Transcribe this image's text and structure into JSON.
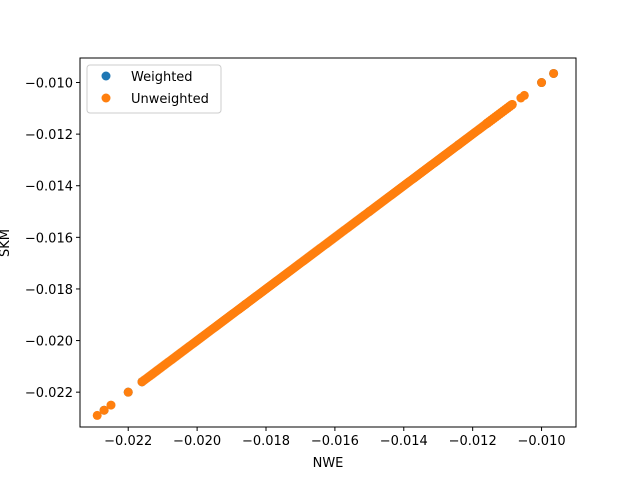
{
  "chart_data": {
    "type": "scatter",
    "xlabel": "NWE",
    "ylabel": "SKM",
    "xlim": [
      -0.0234,
      -0.009
    ],
    "ylim": [
      -0.02335,
      -0.00905
    ],
    "xticks": [
      -0.022,
      -0.02,
      -0.018,
      -0.016,
      -0.014,
      -0.012,
      -0.01
    ],
    "yticks": [
      -0.022,
      -0.02,
      -0.018,
      -0.016,
      -0.014,
      -0.012,
      -0.01
    ],
    "xtick_labels": [
      "−0.022",
      "−0.020",
      "−0.018",
      "−0.016",
      "−0.014",
      "−0.012",
      "−0.010"
    ],
    "ytick_labels": [
      "−0.022",
      "−0.020",
      "−0.018",
      "−0.016",
      "−0.014",
      "−0.012",
      "−0.010"
    ],
    "grid": false,
    "legend": "top-left",
    "series": [
      {
        "name": "Weighted",
        "color": "#1f77b4",
        "points": [
          [
            -0.0227,
            -0.0227
          ],
          [
            -0.022,
            -0.022
          ],
          [
            -0.01,
            -0.01
          ],
          [
            -0.00965,
            -0.00965
          ],
          [
            -0.0216,
            -0.0216
          ],
          [
            -0.0186,
            -0.0186
          ],
          [
            -0.015,
            -0.015
          ],
          [
            -0.0124,
            -0.0124
          ]
        ]
      },
      {
        "name": "Unweighted",
        "color": "#ff7f0e",
        "dense_segments": [
          [
            -0.0216,
            -0.0116
          ],
          [
            -0.0116,
            -0.01085
          ]
        ],
        "points": [
          [
            -0.0229,
            -0.0229
          ],
          [
            -0.0227,
            -0.0227
          ],
          [
            -0.0225,
            -0.0225
          ],
          [
            -0.022,
            -0.022
          ],
          [
            -0.0106,
            -0.0106
          ],
          [
            -0.0105,
            -0.0105
          ],
          [
            -0.01,
            -0.01
          ],
          [
            -0.00965,
            -0.00965
          ]
        ]
      }
    ]
  }
}
